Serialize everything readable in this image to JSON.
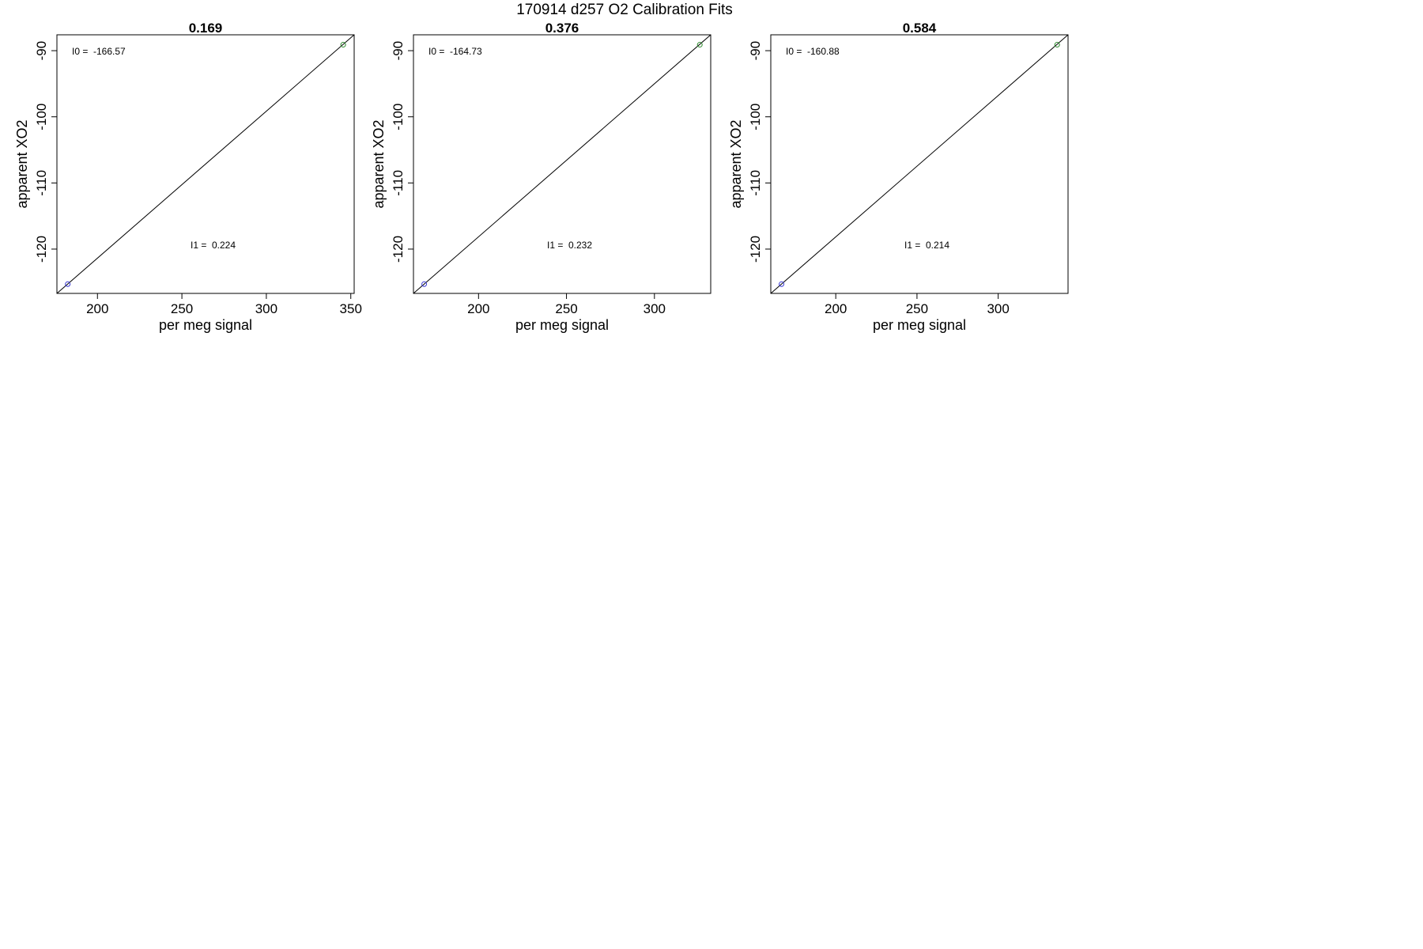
{
  "figure": {
    "title": "170914   d257   O2 Calibration Fits"
  },
  "chart_data": [
    {
      "type": "scatter",
      "title": "0.169",
      "xlabel": "per meg signal",
      "ylabel": "apparent XO2",
      "xlim": [
        176,
        352
      ],
      "ylim": [
        -126.7,
        -87.6
      ],
      "xticks": [
        200,
        250,
        300,
        350
      ],
      "yticks": [
        -90,
        -100,
        -110,
        -120
      ],
      "points": [
        {
          "x": 182.4,
          "y": -125.3,
          "color": "#3a3ad6"
        },
        {
          "x": 345.5,
          "y": -89.1,
          "color": "#2e8b2e"
        }
      ],
      "fit_line": {
        "from": [
          176,
          -126.7
        ],
        "to": [
          352,
          -87.6
        ]
      },
      "annotations": [
        {
          "label": "I0 =",
          "value": "-166.57"
        },
        {
          "label": "I1 =",
          "value": "0.224"
        }
      ],
      "grid": false
    },
    {
      "type": "scatter",
      "title": "0.376",
      "xlabel": "per meg signal",
      "ylabel": "apparent XO2",
      "xlim": [
        163,
        332
      ],
      "ylim": [
        -126.7,
        -87.6
      ],
      "xticks": [
        200,
        250,
        300
      ],
      "yticks": [
        -90,
        -100,
        -110,
        -120
      ],
      "points": [
        {
          "x": 169.1,
          "y": -125.3,
          "color": "#3a3ad6"
        },
        {
          "x": 325.8,
          "y": -89.1,
          "color": "#2e8b2e"
        }
      ],
      "fit_line": {
        "from": [
          163,
          -126.7
        ],
        "to": [
          332,
          -87.6
        ]
      },
      "annotations": [
        {
          "label": "I0 =",
          "value": "-164.73"
        },
        {
          "label": "I1 =",
          "value": "0.232"
        }
      ],
      "grid": false
    },
    {
      "type": "scatter",
      "title": "0.584",
      "xlabel": "per meg signal",
      "ylabel": "apparent XO2",
      "xlim": [
        160,
        343
      ],
      "ylim": [
        -126.7,
        -87.6
      ],
      "xticks": [
        200,
        250,
        300
      ],
      "yticks": [
        -90,
        -100,
        -110,
        -120
      ],
      "points": [
        {
          "x": 166.6,
          "y": -125.3,
          "color": "#3a3ad6"
        },
        {
          "x": 336.3,
          "y": -89.1,
          "color": "#2e8b2e"
        }
      ],
      "fit_line": {
        "from": [
          160,
          -126.7
        ],
        "to": [
          343,
          -87.6
        ]
      },
      "annotations": [
        {
          "label": "I0 =",
          "value": "-160.88"
        },
        {
          "label": "I1 =",
          "value": "0.214"
        }
      ],
      "grid": false
    }
  ]
}
